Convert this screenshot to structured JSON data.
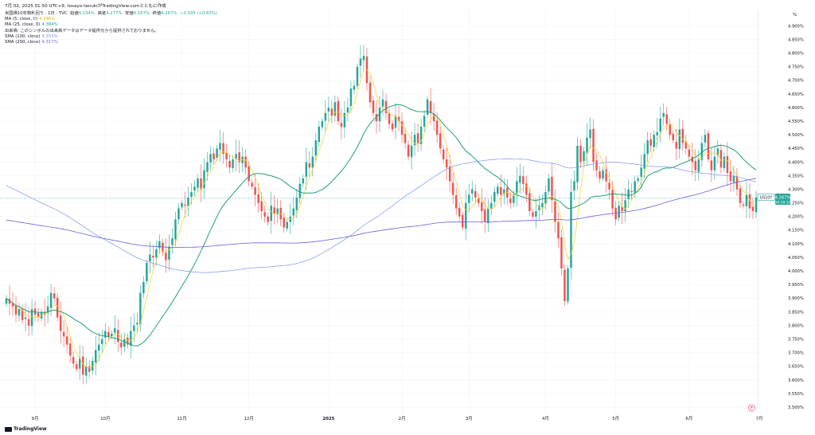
{
  "header": {
    "timestamp": "7月 02, 2025 01:50 UTC+9",
    "author": "tosayo-tanukiがTradingView.comとともに作成"
  },
  "legend": {
    "symbol_title": "米国債10年物利回り · 1日 · TVC",
    "ohlc": {
      "open_label": "始値",
      "open": "4.234%",
      "high_label": "高値",
      "high": "4.277%",
      "low_label": "安値",
      "low": "4.187%",
      "close_label": "終値",
      "close": "4.267%",
      "change": "+0.035 (+0.83%)"
    },
    "indicators": [
      {
        "label": "MA (5, close, 0)",
        "value": "4.246%",
        "color": "#f5d63d"
      },
      {
        "label": "MA (25, close, 0)",
        "value": "4.384%",
        "color": "#22a07a"
      },
      {
        "label": "出来高: このシンボルの出来高データはデータ提供元から提供されておりません。",
        "value": "",
        "color": "#131722"
      },
      {
        "label": "SMA (100, close)",
        "value": "4.353%",
        "color": "#7b93f2"
      },
      {
        "label": "SMA (200, close)",
        "value": "4.317%",
        "color": "#6a5ee0"
      }
    ]
  },
  "price_tag": {
    "symbol": "US10Y",
    "price": "4.267%",
    "countdown": "04:39:10",
    "color": "#26a69a"
  },
  "y_unit": "%",
  "brand": "TradingView",
  "colors": {
    "up": "#26a69a",
    "down": "#ef5350",
    "ma5": "#f5d63d",
    "ma25": "#22a07a",
    "sma100": "#7b93f2",
    "sma200": "#6a5ee0"
  },
  "chart_data": {
    "type": "line",
    "x_tick_labels": [
      "9月",
      "10月",
      "11月",
      "12月",
      "2025",
      "2月",
      "3月",
      "4月",
      "5月",
      "6月",
      "7月"
    ],
    "x_tick_index": [
      9,
      31,
      55,
      76,
      101,
      124,
      145,
      169,
      191,
      214,
      236
    ],
    "y_ticks": [
      3.5,
      3.55,
      3.6,
      3.65,
      3.7,
      3.75,
      3.8,
      3.85,
      3.9,
      3.95,
      4.0,
      4.05,
      4.1,
      4.15,
      4.2,
      4.25,
      4.3,
      4.35,
      4.4,
      4.45,
      4.5,
      4.55,
      4.6,
      4.65,
      4.7,
      4.75,
      4.8,
      4.85,
      4.9
    ],
    "ylim": [
      3.48,
      4.96
    ],
    "last_price": 4.267,
    "candles_close": [
      3.9,
      3.88,
      3.87,
      3.84,
      3.86,
      3.82,
      3.83,
      3.8,
      3.86,
      3.84,
      3.83,
      3.85,
      3.84,
      3.87,
      3.92,
      3.9,
      3.83,
      3.78,
      3.76,
      3.73,
      3.69,
      3.66,
      3.64,
      3.68,
      3.62,
      3.65,
      3.63,
      3.67,
      3.71,
      3.73,
      3.75,
      3.78,
      3.76,
      3.77,
      3.79,
      3.74,
      3.72,
      3.75,
      3.73,
      3.78,
      3.8,
      3.81,
      3.92,
      3.96,
      4.03,
      4.06,
      4.05,
      4.08,
      4.11,
      4.07,
      4.04,
      4.09,
      4.12,
      4.19,
      4.23,
      4.25,
      4.24,
      4.27,
      4.29,
      4.31,
      4.34,
      4.3,
      4.37,
      4.4,
      4.43,
      4.41,
      4.45,
      4.47,
      4.43,
      4.41,
      4.38,
      4.41,
      4.43,
      4.4,
      4.42,
      4.38,
      4.33,
      4.31,
      4.28,
      4.25,
      4.22,
      4.2,
      4.18,
      4.24,
      4.21,
      4.23,
      4.19,
      4.16,
      4.18,
      4.2,
      4.23,
      4.27,
      4.32,
      4.34,
      4.4,
      4.38,
      4.42,
      4.48,
      4.53,
      4.55,
      4.58,
      4.6,
      4.57,
      4.62,
      4.55,
      4.53,
      4.58,
      4.6,
      4.67,
      4.68,
      4.75,
      4.78,
      4.79,
      4.69,
      4.62,
      4.58,
      4.55,
      4.6,
      4.63,
      4.58,
      4.54,
      4.52,
      4.57,
      4.55,
      4.5,
      4.47,
      4.42,
      4.46,
      4.5,
      4.47,
      4.53,
      4.57,
      4.63,
      4.58,
      4.55,
      4.5,
      4.45,
      4.41,
      4.38,
      4.33,
      4.28,
      4.23,
      4.2,
      4.16,
      4.25,
      4.28,
      4.3,
      4.27,
      4.25,
      4.22,
      4.18,
      4.23,
      4.25,
      4.29,
      4.31,
      4.28,
      4.3,
      4.27,
      4.25,
      4.28,
      4.33,
      4.35,
      4.32,
      4.28,
      4.22,
      4.2,
      4.22,
      4.24,
      4.25,
      4.29,
      4.34,
      4.26,
      4.18,
      4.12,
      4.01,
      3.89,
      4.01,
      4.29,
      4.33,
      4.46,
      4.4,
      4.44,
      4.49,
      4.52,
      4.4,
      4.37,
      4.34,
      4.37,
      4.33,
      4.3,
      4.23,
      4.19,
      4.24,
      4.22,
      4.26,
      4.3,
      4.29,
      4.33,
      4.34,
      4.38,
      4.43,
      4.48,
      4.46,
      4.5,
      4.51,
      4.56,
      4.58,
      4.54,
      4.5,
      4.48,
      4.45,
      4.52,
      4.47,
      4.45,
      4.42,
      4.4,
      4.37,
      4.41,
      4.47,
      4.5,
      4.41,
      4.37,
      4.42,
      4.45,
      4.38,
      4.42,
      4.36,
      4.33,
      4.35,
      4.3,
      4.25,
      4.24,
      4.28,
      4.23,
      4.22,
      4.27
    ],
    "series": [
      {
        "name": "MA (5, close, 0)",
        "color": "#f5d63d"
      },
      {
        "name": "MA (25, close, 0)",
        "color": "#22a07a"
      },
      {
        "name": "SMA (100, close)",
        "color": "#7b93f2"
      },
      {
        "name": "SMA (200, close)",
        "color": "#6a5ee0"
      }
    ],
    "grid": true,
    "legend_position": "top-left"
  }
}
